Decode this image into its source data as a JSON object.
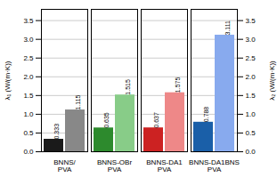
{
  "chart_data": {
    "type": "bar",
    "categories": [
      "BNNS/\nPVA",
      "BNNS-OBr\nPVA",
      "BNNS-DA1\nPVA",
      "BNNS-DA1BNS\nPVA"
    ],
    "series": [
      {
        "colors": [
          "#1a1a1a",
          "#2d8a2d",
          "#cc2222",
          "#1a5fa8"
        ],
        "values": [
          0.333,
          0.635,
          0.637,
          0.788
        ]
      },
      {
        "colors": [
          "#888888",
          "#88cc88",
          "#ee8888",
          "#88aaee"
        ],
        "values": [
          1.115,
          1.515,
          1.575,
          3.111
        ]
      }
    ],
    "ylabel": "λ₁ (W/(m·K))",
    "y2label": "λ₂ (W/(m·K))",
    "ylim": [
      0.0,
      3.8
    ],
    "yticks": [
      {
        "value": 0,
        "label": "0.0"
      },
      0.5,
      {
        "value": 1,
        "label": "1.0"
      },
      1.5,
      {
        "value": 2,
        "label": "2.0"
      },
      2.5,
      {
        "value": 3,
        "label": "3.0"
      },
      3.5
    ],
    "y2lim": [
      0.0,
      3.8
    ],
    "y2ticks": [
      {
        "value": 0,
        "label": "0.0"
      },
      0.5,
      {
        "value": 1,
        "label": "1.0"
      },
      1.5,
      {
        "value": 2,
        "label": "2.0"
      },
      2.5,
      {
        "value": 3,
        "label": "3.0"
      },
      3.5
    ],
    "grid": true,
    "data_labels": true
  }
}
